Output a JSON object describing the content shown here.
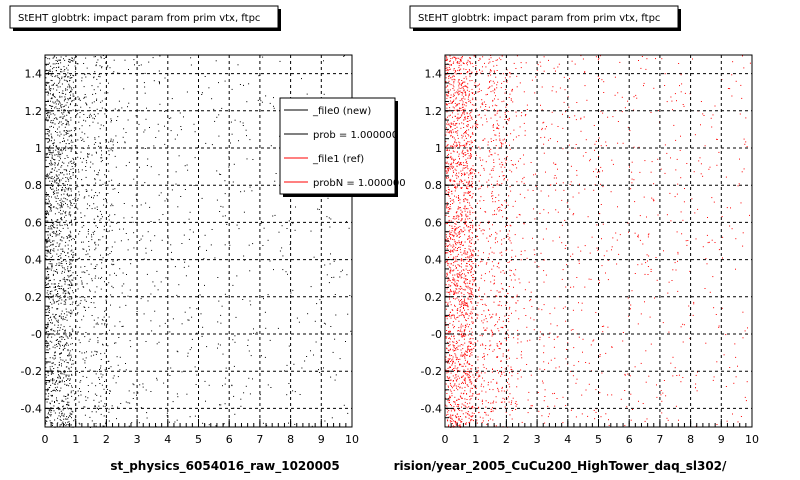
{
  "chart_data": [
    {
      "type": "scatter",
      "title": "StEHT globtrk: impact param from prim vtx, ftpc",
      "xlabel": "st_physics_6054016_raw_1020005",
      "xlim": [
        0,
        10
      ],
      "ylim": [
        -0.5,
        1.5
      ],
      "x_ticks": [
        "0",
        "1",
        "2",
        "3",
        "4",
        "5",
        "6",
        "7",
        "8",
        "9",
        "10"
      ],
      "y_ticks": [
        "-0.4",
        "-0.2",
        "-0",
        "0.2",
        "0.4",
        "0.6",
        "0.8",
        "1",
        "1.2",
        "1.4"
      ],
      "grid": true,
      "point_color": "#000000",
      "legend": {
        "placement": "top-right",
        "entries": [
          {
            "label": "_file0 (new)",
            "color": "#000000"
          },
          {
            "label": "prob = 1.000000",
            "color": "#000000"
          },
          {
            "label": "_file1 (ref)",
            "color": "#ff0000"
          },
          {
            "label": "probN = 1.000000",
            "color": "#ff0000"
          }
        ]
      }
    },
    {
      "type": "scatter",
      "title": "StEHT globtrk: impact param from prim vtx, ftpc",
      "xlabel": "rision/year_2005_CuCu200_HighTower_daq_sl302/",
      "xlim": [
        0,
        10
      ],
      "ylim": [
        -0.5,
        1.5
      ],
      "x_ticks": [
        "0",
        "1",
        "2",
        "3",
        "4",
        "5",
        "6",
        "7",
        "8",
        "9",
        "10"
      ],
      "y_ticks": [
        "-0.4",
        "-0.2",
        "-0",
        "0.2",
        "0.4",
        "0.6",
        "0.8",
        "1",
        "1.2",
        "1.4"
      ],
      "grid": true,
      "point_color": "#ff0000"
    }
  ]
}
